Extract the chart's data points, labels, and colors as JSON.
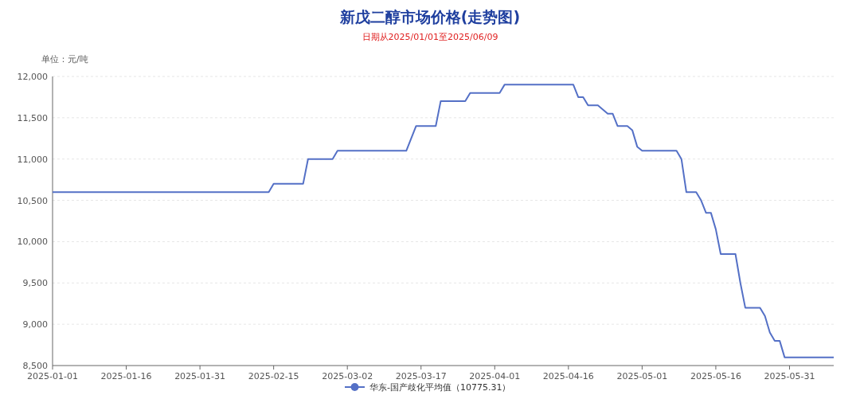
{
  "chart_data": {
    "type": "line",
    "title": "新戊二醇市场价格(走势图)",
    "subtitle": "日期从2025/01/01至2025/06/09",
    "ylabel": "单位：元/吨",
    "xlim": [
      "2025-01-01",
      "2025-06-09"
    ],
    "xticks": [
      "2025-01-01",
      "2025-01-16",
      "2025-01-31",
      "2025-02-15",
      "2025-03-02",
      "2025-03-17",
      "2025-04-01",
      "2025-04-16",
      "2025-05-01",
      "2025-05-16",
      "2025-05-31"
    ],
    "ylim": [
      8500,
      12000
    ],
    "yticks": [
      {
        "value": 8500,
        "label": "8,500"
      },
      {
        "value": 9000,
        "label": "9,000"
      },
      {
        "value": 9500,
        "label": "9,500"
      },
      {
        "value": 10000,
        "label": "10,000"
      },
      {
        "value": 10500,
        "label": "10,500"
      },
      {
        "value": 11000,
        "label": "11,000"
      },
      {
        "value": 11500,
        "label": "11,500"
      },
      {
        "value": 12000,
        "label": "12,000"
      }
    ],
    "grid": "y",
    "legend": "bottom",
    "series": [
      {
        "name": "华东-国产歧化平均值（10775.31）",
        "color": "#5470c6",
        "x": [
          "2025-01-01",
          "2025-02-14",
          "2025-02-15",
          "2025-02-21",
          "2025-02-22",
          "2025-02-27",
          "2025-02-28",
          "2025-03-14",
          "2025-03-16",
          "2025-03-20",
          "2025-03-21",
          "2025-03-26",
          "2025-03-27",
          "2025-04-02",
          "2025-04-03",
          "2025-04-17",
          "2025-04-18",
          "2025-04-19",
          "2025-04-20",
          "2025-04-22",
          "2025-04-24",
          "2025-04-25",
          "2025-04-26",
          "2025-04-28",
          "2025-04-29",
          "2025-04-30",
          "2025-05-01",
          "2025-05-08",
          "2025-05-09",
          "2025-05-10",
          "2025-05-12",
          "2025-05-13",
          "2025-05-14",
          "2025-05-15",
          "2025-05-16",
          "2025-05-17",
          "2025-05-20",
          "2025-05-21",
          "2025-05-22",
          "2025-05-25",
          "2025-05-26",
          "2025-05-27",
          "2025-05-28",
          "2025-05-29",
          "2025-05-30",
          "2025-06-09"
        ],
        "values": [
          10600,
          10600,
          10700,
          10700,
          11000,
          11000,
          11100,
          11100,
          11400,
          11400,
          11700,
          11700,
          11800,
          11800,
          11900,
          11900,
          11750,
          11750,
          11650,
          11650,
          11550,
          11550,
          11400,
          11400,
          11350,
          11150,
          11100,
          11100,
          11000,
          10600,
          10600,
          10500,
          10350,
          10350,
          10150,
          9850,
          9850,
          9500,
          9200,
          9200,
          9100,
          8900,
          8800,
          8800,
          8600,
          8600
        ]
      }
    ]
  }
}
